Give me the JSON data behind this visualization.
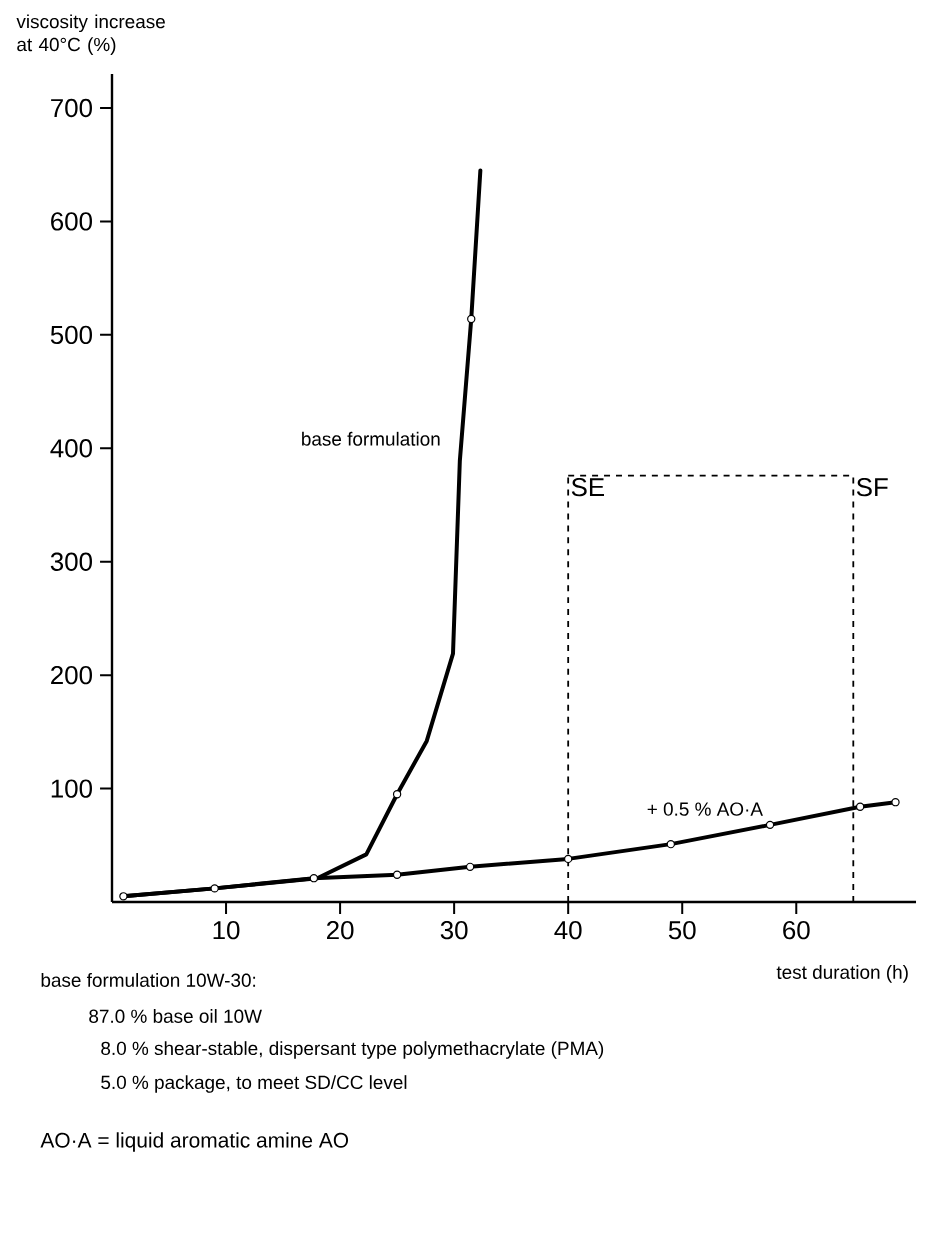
{
  "chart_data": {
    "type": "line",
    "xlabel": "test duration (h)",
    "ylabel": "viscosity increase at 40°C (%)",
    "xlim": [
      0,
      70.5
    ],
    "ylim": [
      0,
      730
    ],
    "xticks": [
      10,
      20,
      30,
      40,
      50,
      60
    ],
    "yticks": [
      100,
      200,
      300,
      400,
      500,
      600,
      700
    ],
    "grid": false,
    "series": [
      {
        "name": "base formulation",
        "color": "#000000",
        "marker": "none",
        "x": [
          1,
          9,
          18,
          22.3,
          25,
          27.6,
          29.9,
          30.5,
          31.5,
          32.3
        ],
        "values": [
          5,
          12,
          21,
          42,
          95,
          142,
          219,
          389,
          514,
          645
        ]
      },
      {
        "type": "scatter",
        "color": "#000000",
        "marker": "circle",
        "x": [
          25,
          31.5
        ],
        "values": [
          95,
          514
        ]
      },
      {
        "name": "+ 0.5 % AO·A",
        "color": "#000000",
        "marker": "circle",
        "x": [
          1,
          9,
          17.7,
          25,
          31.4,
          40,
          49,
          57.7,
          65.6,
          68.7
        ],
        "values": [
          5,
          12,
          21,
          24,
          31,
          38,
          51,
          68,
          84,
          88
        ]
      }
    ],
    "ref_lines": [
      {
        "axis": "x",
        "value": 40,
        "label": "SE",
        "line_style": "dashed"
      },
      {
        "axis": "x",
        "value": 65,
        "label": "SF",
        "line_style": "dashed"
      }
    ],
    "annotations": [
      "base formulation 10W-30:",
      "87.0 % base oil 10W",
      "8.0 % shear-stable, dispersant type polymethacrylate (PMA)",
      "5.0 % package, to meet SD/CC level",
      "AO·A  = liquid aromatic amine AO"
    ]
  }
}
